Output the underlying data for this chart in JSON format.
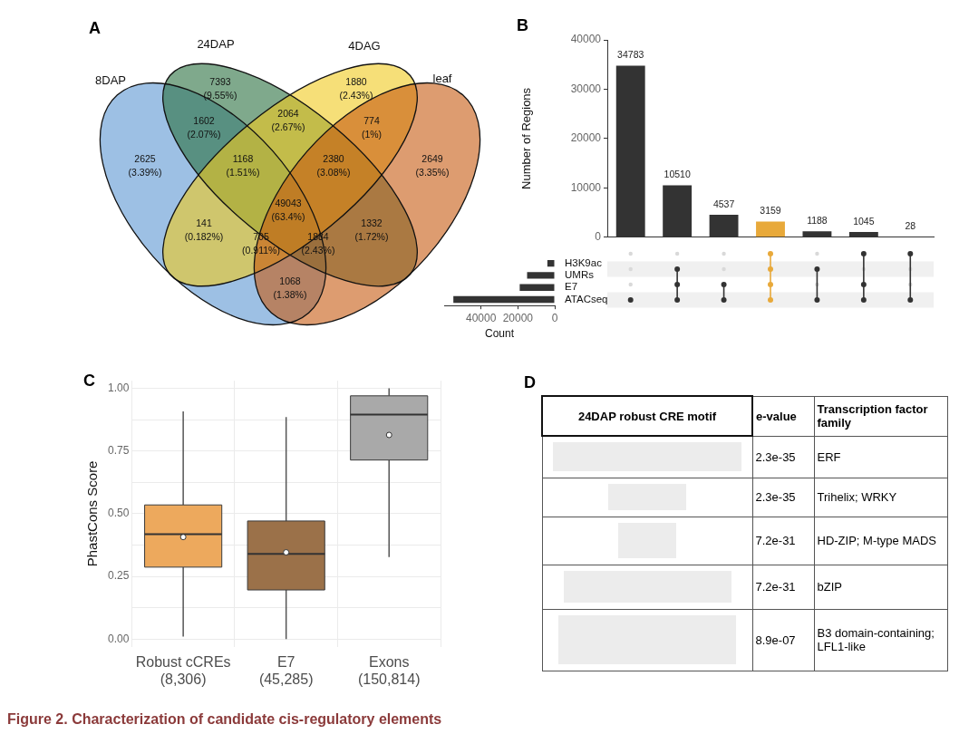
{
  "chart_data": [
    {
      "type": "other",
      "title": "A",
      "categories": [
        "8DAP",
        "24DAP",
        "4DAG",
        "leaf"
      ],
      "annotations": [
        "2625\n(3.39%)",
        "7393\n(9.55%)",
        "1880\n(2.43%)",
        "2649\n(3.35%)",
        "1602\n(2.07%)",
        "2064\n(2.67%)",
        "774\n(1%)",
        "1168\n(1.51%)",
        "2380\n(3.08%)",
        "49043\n(63.4%)",
        "141\n(0.182%)",
        "1332\n(1.72%)",
        "705\n(0.911%)",
        "1884\n(2.43%)",
        "1068\n(1.38%)",
        "Figure 2.  Characterization of candidate cis-regulatory elements"
      ]
    },
    {
      "type": "bar",
      "title": "B",
      "ylabel": "Number of Regions",
      "categories": [
        null,
        null,
        null,
        null,
        null,
        null,
        null
      ],
      "values": [
        34783,
        10510,
        4537,
        3159,
        1188,
        1045,
        28
      ],
      "colors": [
        "#333333",
        "#333333",
        "#333333",
        "#e8a93a",
        "#333333",
        "#333333",
        "#333333"
      ],
      "ylim": [
        0,
        40000
      ],
      "yticks": [
        0,
        10000,
        20000,
        30000,
        40000
      ],
      "data_labels": true
    },
    {
      "type": "bar",
      "orientation": "horizontal",
      "xlabel": "Count",
      "categories": [
        "H3K9ac",
        "UMRs",
        "E7",
        "ATACseq"
      ],
      "values": [
        4000,
        15000,
        19000,
        55000
      ],
      "color": "#333333",
      "xlim": [
        60000,
        0
      ],
      "xticks": [
        40000,
        20000,
        0
      ]
    },
    {
      "type": "box",
      "title": "C",
      "ylabel": "PhastCons Score",
      "categories": [
        "Robust cCREs\n(8,306)",
        "E7\n(45,285)",
        "Exons\n(150,814)"
      ],
      "colors": [
        "#eda95d",
        "#9b7149",
        "#a9a9a9"
      ],
      "boxes": [
        {
          "low": 0.01,
          "q1": 0.287,
          "median": 0.418,
          "q3": 0.535,
          "high": 0.908,
          "mean": 0.407
        },
        {
          "low": 0.0,
          "q1": 0.196,
          "median": 0.34,
          "q3": 0.471,
          "high": 0.885,
          "mean": 0.346
        },
        {
          "low": 0.327,
          "q1": 0.714,
          "median": 0.895,
          "q3": 0.97,
          "high": 1.0,
          "mean": 0.814
        }
      ],
      "ylim": [
        -0.03,
        1.03
      ],
      "yticks": [
        {
          "value": 0,
          "label": "0.00"
        },
        {
          "value": 0.125,
          "label": null
        },
        {
          "value": 0.25,
          "label": "0.25"
        },
        {
          "value": 0.375,
          "label": null
        },
        {
          "value": 0.5,
          "label": "0.50"
        },
        {
          "value": 0.625,
          "label": null
        },
        {
          "value": 0.75,
          "label": "0.75"
        },
        {
          "value": 0.875,
          "label": null
        },
        {
          "value": 1,
          "label": "1.00"
        }
      ],
      "grid": true
    },
    {
      "type": "other",
      "title": "D",
      "annotations": [
        "24DAP robust CRE motif",
        "e-value",
        "Transcription factor family",
        "2.3e-35",
        "ERF",
        "2.3e-35",
        "Trihelix; WRKY",
        "7.2e-31",
        "HD-ZIP; M-type MADS",
        "7.2e-31",
        "bZIP",
        "8.9e-07",
        "B3 domain-containing; LFL1-like"
      ]
    }
  ]
}
